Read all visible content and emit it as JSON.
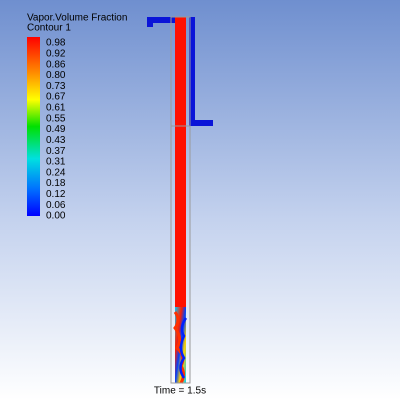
{
  "legend": {
    "title": "Vapor.Volume Fraction",
    "subtitle": "Contour 1",
    "labels": [
      "0.98",
      "0.92",
      "0.86",
      "0.80",
      "0.73",
      "0.67",
      "0.61",
      "0.55",
      "0.49",
      "0.43",
      "0.37",
      "0.31",
      "0.24",
      "0.18",
      "0.12",
      "0.06",
      "0.00"
    ]
  },
  "footer": {
    "time": "Time = 1.5s"
  }
}
